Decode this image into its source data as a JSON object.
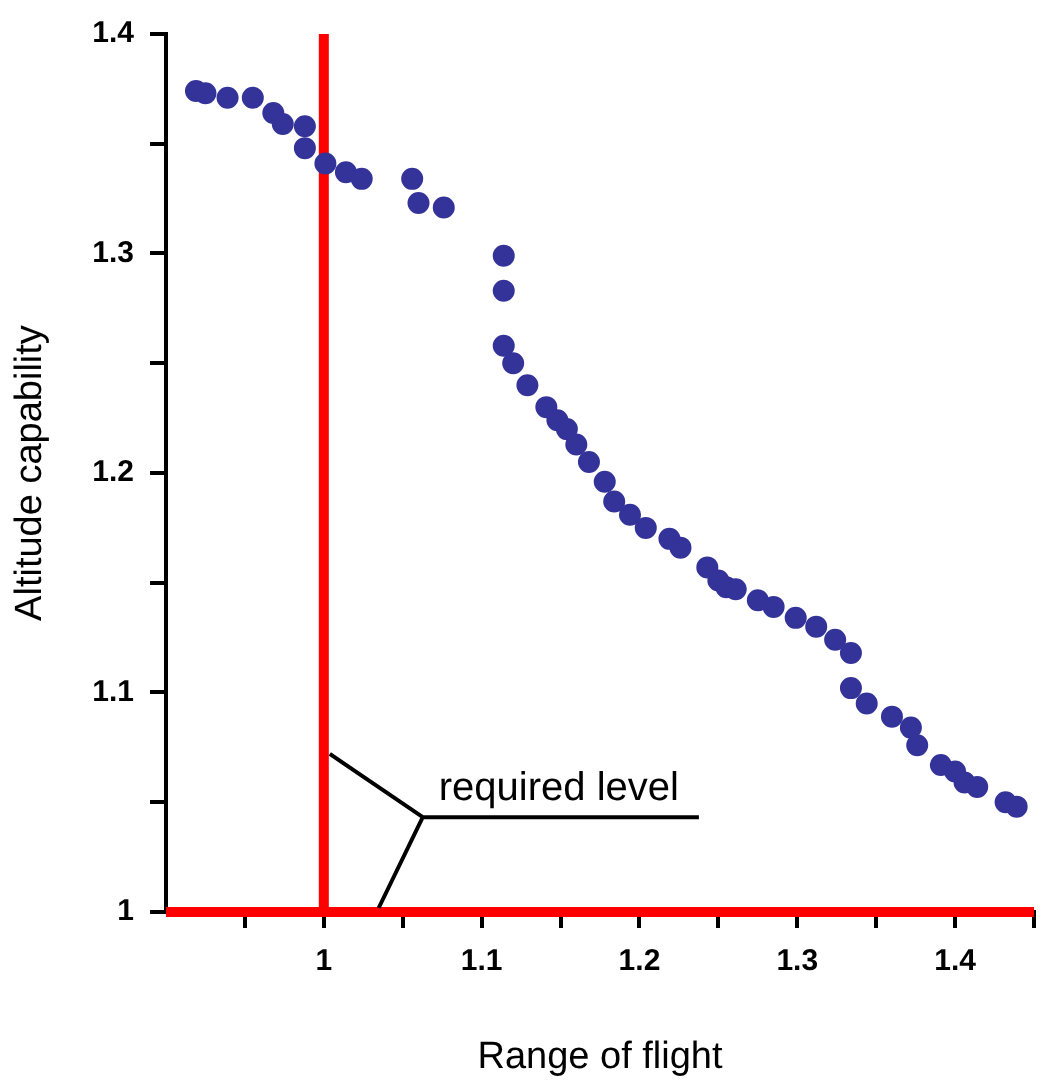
{
  "chart_data": {
    "type": "scatter",
    "xlabel": "Range of flight",
    "ylabel": "Altitude capability",
    "xlim": [
      0.9,
      1.45
    ],
    "ylim": [
      1,
      1.4
    ],
    "xticks": [
      {
        "value": 0.95,
        "label": null
      },
      1,
      {
        "value": 1.05,
        "label": null
      },
      1.1,
      {
        "value": 1.15,
        "label": null
      },
      1.2,
      {
        "value": 1.25,
        "label": null
      },
      1.3,
      {
        "value": 1.35,
        "label": null
      },
      1.4,
      {
        "value": 1.45,
        "label": null
      }
    ],
    "yticks": [
      1,
      {
        "value": 1.05,
        "label": null
      },
      1.1,
      {
        "value": 1.15,
        "label": null
      },
      1.2,
      {
        "value": 1.25,
        "label": null
      },
      1.3,
      {
        "value": 1.35,
        "label": null
      },
      1.4
    ],
    "grid": false,
    "legend": false,
    "marker": "circle",
    "ref_lines": [
      {
        "axis": "x",
        "value": 1,
        "label": "required level",
        "color": "#ff0000"
      },
      {
        "axis": "y",
        "value": 1,
        "color": "#ff0000"
      }
    ],
    "series": [
      {
        "color": "#333399",
        "x": [
          0.919,
          0.925,
          0.939,
          0.955,
          0.968,
          0.974,
          0.988,
          0.988,
          1.001,
          1.014,
          1.024,
          1.056,
          1.06,
          1.076,
          1.114,
          1.114,
          1.114,
          1.12,
          1.129,
          1.141,
          1.148,
          1.154,
          1.16,
          1.168,
          1.178,
          1.184,
          1.194,
          1.204,
          1.219,
          1.226,
          1.243,
          1.25,
          1.255,
          1.261,
          1.275,
          1.285,
          1.299,
          1.312,
          1.324,
          1.334,
          1.334,
          1.344,
          1.36,
          1.372,
          1.376,
          1.391,
          1.4,
          1.406,
          1.414,
          1.432,
          1.439
        ],
        "values": [
          1.374,
          1.373,
          1.371,
          1.371,
          1.364,
          1.359,
          1.358,
          1.348,
          1.341,
          1.337,
          1.334,
          1.334,
          1.323,
          1.321,
          1.299,
          1.283,
          1.258,
          1.25,
          1.24,
          1.23,
          1.224,
          1.22,
          1.213,
          1.205,
          1.196,
          1.187,
          1.181,
          1.175,
          1.17,
          1.166,
          1.157,
          1.151,
          1.148,
          1.147,
          1.142,
          1.139,
          1.134,
          1.13,
          1.124,
          1.118,
          1.102,
          1.095,
          1.089,
          1.084,
          1.076,
          1.067,
          1.064,
          1.059,
          1.057,
          1.05,
          1.048
        ]
      }
    ]
  }
}
